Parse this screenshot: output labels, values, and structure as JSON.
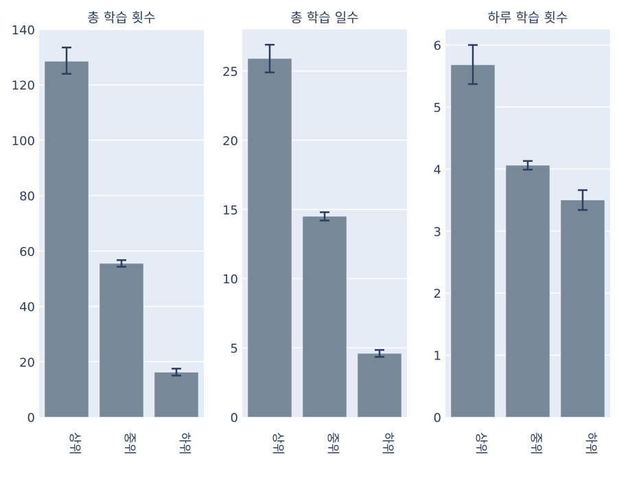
{
  "chart_data": [
    {
      "type": "bar",
      "title": "총 학습 횟수",
      "categories": [
        "상위",
        "중위",
        "하위"
      ],
      "values": [
        128.5,
        55.5,
        16.2
      ],
      "error": [
        [
          124.0,
          133.5
        ],
        [
          54.3,
          56.7
        ],
        [
          15.0,
          17.5
        ]
      ],
      "ylim": [
        0,
        140
      ],
      "yticks": [
        0,
        20,
        40,
        60,
        80,
        100,
        120,
        140
      ],
      "grid": true,
      "bar_color": "#778899",
      "error_color": "#2a3f5f"
    },
    {
      "type": "bar",
      "title": "총 학습 일수",
      "categories": [
        "상위",
        "중위",
        "하위"
      ],
      "values": [
        25.9,
        14.5,
        4.6
      ],
      "error": [
        [
          24.9,
          26.9
        ],
        [
          14.2,
          14.8
        ],
        [
          4.35,
          4.85
        ]
      ],
      "ylim": [
        0,
        28
      ],
      "yticks": [
        0,
        5,
        10,
        15,
        20,
        25
      ],
      "grid": true,
      "bar_color": "#778899",
      "error_color": "#2a3f5f"
    },
    {
      "type": "bar",
      "title": "하루 학습 횟수",
      "categories": [
        "상위",
        "중위",
        "하위"
      ],
      "values": [
        5.68,
        4.06,
        3.5
      ],
      "error": [
        [
          5.37,
          6.0
        ],
        [
          3.99,
          4.13
        ],
        [
          3.34,
          3.66
        ]
      ],
      "ylim": [
        0,
        6.25
      ],
      "yticks": [
        0,
        1,
        2,
        3,
        4,
        5,
        6
      ],
      "grid": true,
      "bar_color": "#778899",
      "error_color": "#2a3f5f"
    }
  ]
}
